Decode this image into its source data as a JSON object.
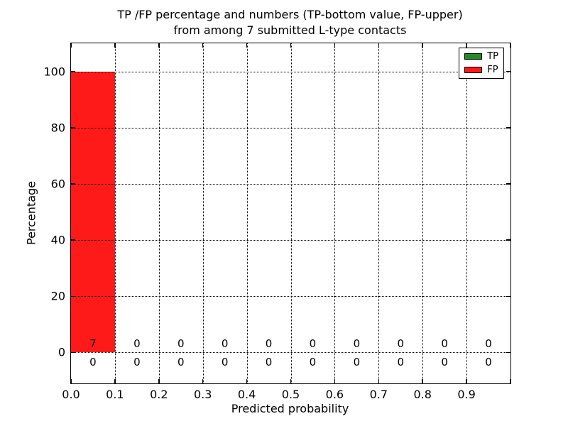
{
  "figure": {
    "title_line1": "TP /FP percentage and numbers (TP-bottom value, FP-upper)",
    "title_line2": "from among 7 submitted L-type contacts"
  },
  "axes": {
    "xlabel": "Predicted probability",
    "ylabel": "Percentage",
    "x_tick_labels": [
      "0.0",
      "0.1",
      "0.2",
      "0.3",
      "0.4",
      "0.5",
      "0.6",
      "0.7",
      "0.8",
      "0.9"
    ],
    "y_tick_labels": [
      "0",
      "20",
      "40",
      "60",
      "80",
      "100"
    ]
  },
  "legend": {
    "items": [
      {
        "label": "TP",
        "color": "#228b22"
      },
      {
        "label": "FP",
        "color": "#ff1a1a"
      }
    ]
  },
  "chart_data": {
    "type": "bar",
    "title": "TP /FP percentage and numbers (TP-bottom value, FP-upper) from among 7 submitted L-type contacts",
    "xlabel": "Predicted probability",
    "ylabel": "Percentage",
    "xlim": [
      0.0,
      1.0
    ],
    "ylim": [
      -11,
      110
    ],
    "grid": true,
    "grid_style": "dotted",
    "legend_position": "upper right",
    "total_submitted_contacts": 7,
    "bin_width": 0.1,
    "bin_edges": [
      0.0,
      0.1,
      0.2,
      0.3,
      0.4,
      0.5,
      0.6,
      0.7,
      0.8,
      0.9,
      1.0
    ],
    "bin_centers": [
      0.05,
      0.15,
      0.25,
      0.35,
      0.45,
      0.55,
      0.65,
      0.75,
      0.85,
      0.95
    ],
    "x_tick_values": [
      0.0,
      0.1,
      0.2,
      0.3,
      0.4,
      0.5,
      0.6,
      0.7,
      0.8,
      0.9
    ],
    "x_tick_marks": [
      0.0,
      0.1,
      0.2,
      0.3,
      0.4,
      0.5,
      0.6,
      0.7,
      0.8,
      0.9,
      1.0
    ],
    "y_tick_values": [
      0,
      20,
      40,
      60,
      80,
      100
    ],
    "x_grid_values": [
      0.1,
      0.2,
      0.3,
      0.4,
      0.5,
      0.6,
      0.7,
      0.8,
      0.9
    ],
    "y_grid_values": [
      0,
      20,
      40,
      60,
      80,
      100
    ],
    "series": [
      {
        "name": "TP",
        "color": "#228b22",
        "count_row": "lower",
        "percent": [
          0,
          0,
          0,
          0,
          0,
          0,
          0,
          0,
          0,
          0
        ],
        "counts": [
          0,
          0,
          0,
          0,
          0,
          0,
          0,
          0,
          0,
          0
        ]
      },
      {
        "name": "FP",
        "color": "#ff1a1a",
        "count_row": "upper",
        "percent": [
          100,
          0,
          0,
          0,
          0,
          0,
          0,
          0,
          0,
          0
        ],
        "counts": [
          7,
          0,
          0,
          0,
          0,
          0,
          0,
          0,
          0,
          0
        ]
      }
    ]
  }
}
